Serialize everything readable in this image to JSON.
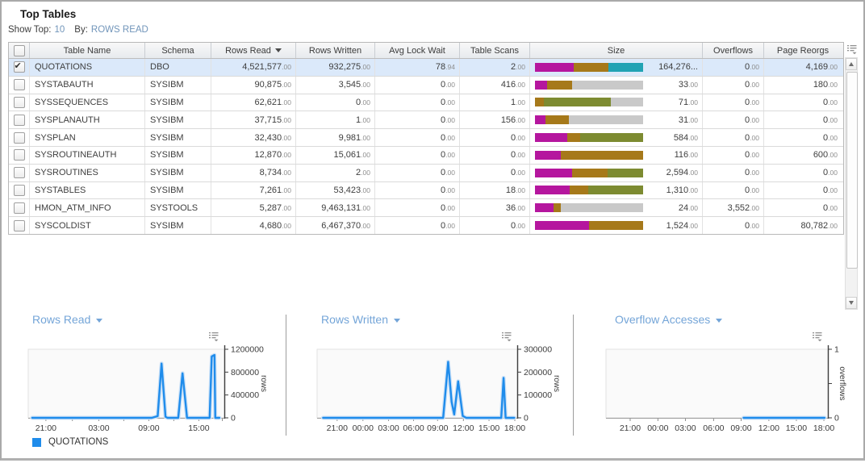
{
  "panel": {
    "title": "Top Tables"
  },
  "controls": {
    "show_top_label": "Show Top:",
    "show_top_value": "10",
    "by_label": "By:",
    "by_value": "ROWS READ"
  },
  "colors": {
    "magenta": "#b5169e",
    "brown": "#a6791a",
    "teal": "#21a3b4",
    "olive": "#7d8b31",
    "gray": "#c9c9c9",
    "series_blue": "#1f8ceb"
  },
  "table": {
    "columns": [
      {
        "label": "Table Name"
      },
      {
        "label": "Schema"
      },
      {
        "label": "Rows Read",
        "sort": "desc"
      },
      {
        "label": "Rows Written"
      },
      {
        "label": "Avg Lock Wait"
      },
      {
        "label": "Table Scans"
      },
      {
        "label": "Size"
      },
      {
        "label": "Overflows"
      },
      {
        "label": "Page Reorgs"
      }
    ],
    "rows": [
      {
        "checked": true,
        "selected": true,
        "table_name": "QUOTATIONS",
        "schema": "DBO",
        "rows_read": {
          "i": "4,521,577",
          "d": "00"
        },
        "rows_written": {
          "i": "932,275",
          "d": "00"
        },
        "avg_lock_wait": {
          "i": "78",
          "d": "94"
        },
        "table_scans": {
          "i": "2",
          "d": "00"
        },
        "size_bar": [
          [
            "magenta",
            0.36
          ],
          [
            "brown",
            0.32
          ],
          [
            "teal",
            0.32
          ]
        ],
        "size": {
          "i": "164,276...",
          "d": null
        },
        "overflows": {
          "i": "0",
          "d": "00"
        },
        "page_reorgs": {
          "i": "4,169",
          "d": "00"
        }
      },
      {
        "checked": false,
        "selected": false,
        "table_name": "SYSTABAUTH",
        "schema": "SYSIBM",
        "rows_read": {
          "i": "90,875",
          "d": "00"
        },
        "rows_written": {
          "i": "3,545",
          "d": "00"
        },
        "avg_lock_wait": {
          "i": "0",
          "d": "00"
        },
        "table_scans": {
          "i": "416",
          "d": "00"
        },
        "size_bar": [
          [
            "magenta",
            0.11
          ],
          [
            "brown",
            0.23
          ],
          [
            "gray",
            0.66
          ]
        ],
        "size": {
          "i": "33",
          "d": "00"
        },
        "overflows": {
          "i": "0",
          "d": "00"
        },
        "page_reorgs": {
          "i": "180",
          "d": "00"
        }
      },
      {
        "checked": false,
        "selected": false,
        "table_name": "SYSSEQUENCES",
        "schema": "SYSIBM",
        "rows_read": {
          "i": "62,621",
          "d": "00"
        },
        "rows_written": {
          "i": "0",
          "d": "00"
        },
        "avg_lock_wait": {
          "i": "0",
          "d": "00"
        },
        "table_scans": {
          "i": "1",
          "d": "00"
        },
        "size_bar": [
          [
            "brown",
            0.08
          ],
          [
            "olive",
            0.62
          ],
          [
            "gray",
            0.3
          ]
        ],
        "size": {
          "i": "71",
          "d": "00"
        },
        "overflows": {
          "i": "0",
          "d": "00"
        },
        "page_reorgs": {
          "i": "0",
          "d": "00"
        }
      },
      {
        "checked": false,
        "selected": false,
        "table_name": "SYSPLANAUTH",
        "schema": "SYSIBM",
        "rows_read": {
          "i": "37,715",
          "d": "00"
        },
        "rows_written": {
          "i": "1",
          "d": "00"
        },
        "avg_lock_wait": {
          "i": "0",
          "d": "00"
        },
        "table_scans": {
          "i": "156",
          "d": "00"
        },
        "size_bar": [
          [
            "magenta",
            0.1
          ],
          [
            "brown",
            0.21
          ],
          [
            "gray",
            0.69
          ]
        ],
        "size": {
          "i": "31",
          "d": "00"
        },
        "overflows": {
          "i": "0",
          "d": "00"
        },
        "page_reorgs": {
          "i": "0",
          "d": "00"
        }
      },
      {
        "checked": false,
        "selected": false,
        "table_name": "SYSPLAN",
        "schema": "SYSIBM",
        "rows_read": {
          "i": "32,430",
          "d": "00"
        },
        "rows_written": {
          "i": "9,981",
          "d": "00"
        },
        "avg_lock_wait": {
          "i": "0",
          "d": "00"
        },
        "table_scans": {
          "i": "0",
          "d": "00"
        },
        "size_bar": [
          [
            "magenta",
            0.3
          ],
          [
            "brown",
            0.12
          ],
          [
            "olive",
            0.58
          ]
        ],
        "size": {
          "i": "584",
          "d": "00"
        },
        "overflows": {
          "i": "0",
          "d": "00"
        },
        "page_reorgs": {
          "i": "0",
          "d": "00"
        }
      },
      {
        "checked": false,
        "selected": false,
        "table_name": "SYSROUTINEAUTH",
        "schema": "SYSIBM",
        "rows_read": {
          "i": "12,870",
          "d": "00"
        },
        "rows_written": {
          "i": "15,061",
          "d": "00"
        },
        "avg_lock_wait": {
          "i": "0",
          "d": "00"
        },
        "table_scans": {
          "i": "0",
          "d": "00"
        },
        "size_bar": [
          [
            "magenta",
            0.24
          ],
          [
            "brown",
            0.76
          ]
        ],
        "size": {
          "i": "116",
          "d": "00"
        },
        "overflows": {
          "i": "0",
          "d": "00"
        },
        "page_reorgs": {
          "i": "600",
          "d": "00"
        }
      },
      {
        "checked": false,
        "selected": false,
        "table_name": "SYSROUTINES",
        "schema": "SYSIBM",
        "rows_read": {
          "i": "8,734",
          "d": "00"
        },
        "rows_written": {
          "i": "2",
          "d": "00"
        },
        "avg_lock_wait": {
          "i": "0",
          "d": "00"
        },
        "table_scans": {
          "i": "0",
          "d": "00"
        },
        "size_bar": [
          [
            "magenta",
            0.34
          ],
          [
            "brown",
            0.33
          ],
          [
            "olive",
            0.33
          ]
        ],
        "size": {
          "i": "2,594",
          "d": "00"
        },
        "overflows": {
          "i": "0",
          "d": "00"
        },
        "page_reorgs": {
          "i": "0",
          "d": "00"
        }
      },
      {
        "checked": false,
        "selected": false,
        "table_name": "SYSTABLES",
        "schema": "SYSIBM",
        "rows_read": {
          "i": "7,261",
          "d": "00"
        },
        "rows_written": {
          "i": "53,423",
          "d": "00"
        },
        "avg_lock_wait": {
          "i": "0",
          "d": "00"
        },
        "table_scans": {
          "i": "18",
          "d": "00"
        },
        "size_bar": [
          [
            "magenta",
            0.32
          ],
          [
            "brown",
            0.17
          ],
          [
            "olive",
            0.51
          ]
        ],
        "size": {
          "i": "1,310",
          "d": "00"
        },
        "overflows": {
          "i": "0",
          "d": "00"
        },
        "page_reorgs": {
          "i": "0",
          "d": "00"
        }
      },
      {
        "checked": false,
        "selected": false,
        "table_name": "HMON_ATM_INFO",
        "schema": "SYSTOOLS",
        "rows_read": {
          "i": "5,287",
          "d": "00"
        },
        "rows_written": {
          "i": "9,463,131",
          "d": "00"
        },
        "avg_lock_wait": {
          "i": "0",
          "d": "00"
        },
        "table_scans": {
          "i": "36",
          "d": "00"
        },
        "size_bar": [
          [
            "magenta",
            0.17
          ],
          [
            "brown",
            0.07
          ],
          [
            "gray",
            0.76
          ]
        ],
        "size": {
          "i": "24",
          "d": "00"
        },
        "overflows": {
          "i": "3,552",
          "d": "00"
        },
        "page_reorgs": {
          "i": "0",
          "d": "00"
        }
      },
      {
        "checked": false,
        "selected": false,
        "table_name": "SYSCOLDIST",
        "schema": "SYSIBM",
        "rows_read": {
          "i": "4,680",
          "d": "00"
        },
        "rows_written": {
          "i": "6,467,370",
          "d": "00"
        },
        "avg_lock_wait": {
          "i": "0",
          "d": "00"
        },
        "table_scans": {
          "i": "0",
          "d": "00"
        },
        "size_bar": [
          [
            "magenta",
            0.5
          ],
          [
            "brown",
            0.5
          ]
        ],
        "size": {
          "i": "1,524",
          "d": "00"
        },
        "overflows": {
          "i": "0",
          "d": "00"
        },
        "page_reorgs": {
          "i": "80,782",
          "d": "00"
        }
      }
    ]
  },
  "legend": {
    "label": "QUOTATIONS",
    "color": "#1f8ceb"
  },
  "chart_data": [
    {
      "type": "line",
      "title": "Rows Read",
      "series_name": "QUOTATIONS",
      "ylabel": "rows",
      "ymax": 1200000,
      "yticks": [
        {
          "v": 0,
          "label": "0"
        },
        {
          "v": 400000,
          "label": "400000"
        },
        {
          "v": 800000,
          "label": "800000"
        },
        {
          "v": 1200000,
          "label": "1200000"
        }
      ],
      "xticks": [
        {
          "f": 0.09,
          "label": "21:00"
        },
        {
          "f": 0.225,
          "label": ""
        },
        {
          "f": 0.36,
          "label": "03:00"
        },
        {
          "f": 0.4875,
          "label": ""
        },
        {
          "f": 0.615,
          "label": "09:00"
        },
        {
          "f": 0.7425,
          "label": ""
        },
        {
          "f": 0.87,
          "label": "15:00"
        },
        {
          "f": 0.99,
          "label": ""
        }
      ],
      "points": [
        [
          0.02,
          0
        ],
        [
          0.63,
          0
        ],
        [
          0.66,
          30000
        ],
        [
          0.68,
          950000
        ],
        [
          0.7,
          20000
        ],
        [
          0.71,
          0
        ],
        [
          0.765,
          0
        ],
        [
          0.787,
          780000
        ],
        [
          0.81,
          0
        ],
        [
          0.925,
          0
        ],
        [
          0.936,
          1075000
        ],
        [
          0.95,
          1100000
        ],
        [
          0.954,
          0
        ],
        [
          0.975,
          0
        ]
      ]
    },
    {
      "type": "line",
      "title": "Rows Written",
      "series_name": "QUOTATIONS",
      "ylabel": "rows",
      "ymax": 300000,
      "yticks": [
        {
          "v": 0,
          "label": "0"
        },
        {
          "v": 100000,
          "label": "100000"
        },
        {
          "v": 200000,
          "label": "200000"
        },
        {
          "v": 300000,
          "label": "300000"
        }
      ],
      "xticks": [
        {
          "f": 0.1,
          "label": "21:00"
        },
        {
          "f": 0.229,
          "label": "00:00"
        },
        {
          "f": 0.357,
          "label": "03:00"
        },
        {
          "f": 0.482,
          "label": "06:00"
        },
        {
          "f": 0.602,
          "label": "09:00"
        },
        {
          "f": 0.731,
          "label": "12:00"
        },
        {
          "f": 0.859,
          "label": "15:00"
        },
        {
          "f": 0.988,
          "label": "18:00"
        }
      ],
      "points": [
        [
          0.03,
          0
        ],
        [
          0.63,
          0
        ],
        [
          0.655,
          245000
        ],
        [
          0.672,
          70000
        ],
        [
          0.685,
          15000
        ],
        [
          0.705,
          160000
        ],
        [
          0.728,
          8000
        ],
        [
          0.745,
          0
        ],
        [
          0.92,
          0
        ],
        [
          0.932,
          175000
        ],
        [
          0.942,
          0
        ],
        [
          0.985,
          0
        ]
      ]
    },
    {
      "type": "line",
      "title": "Overflow Accesses",
      "series_name": "QUOTATIONS",
      "ylabel": "overflows",
      "ymax": 1,
      "yticks": [
        {
          "v": 0,
          "label": "0"
        },
        {
          "v": 0.5,
          "label": ""
        },
        {
          "v": 1,
          "label": "1"
        }
      ],
      "xticks": [
        {
          "f": 0.109,
          "label": "21:00"
        },
        {
          "f": 0.234,
          "label": "00:00"
        },
        {
          "f": 0.358,
          "label": "03:00"
        },
        {
          "f": 0.485,
          "label": "06:00"
        },
        {
          "f": 0.609,
          "label": "09:00"
        },
        {
          "f": 0.734,
          "label": "12:00"
        },
        {
          "f": 0.858,
          "label": "15:00"
        },
        {
          "f": 0.982,
          "label": "18:00"
        }
      ],
      "points": [
        [
          0.62,
          0
        ],
        [
          0.985,
          0
        ]
      ]
    }
  ]
}
